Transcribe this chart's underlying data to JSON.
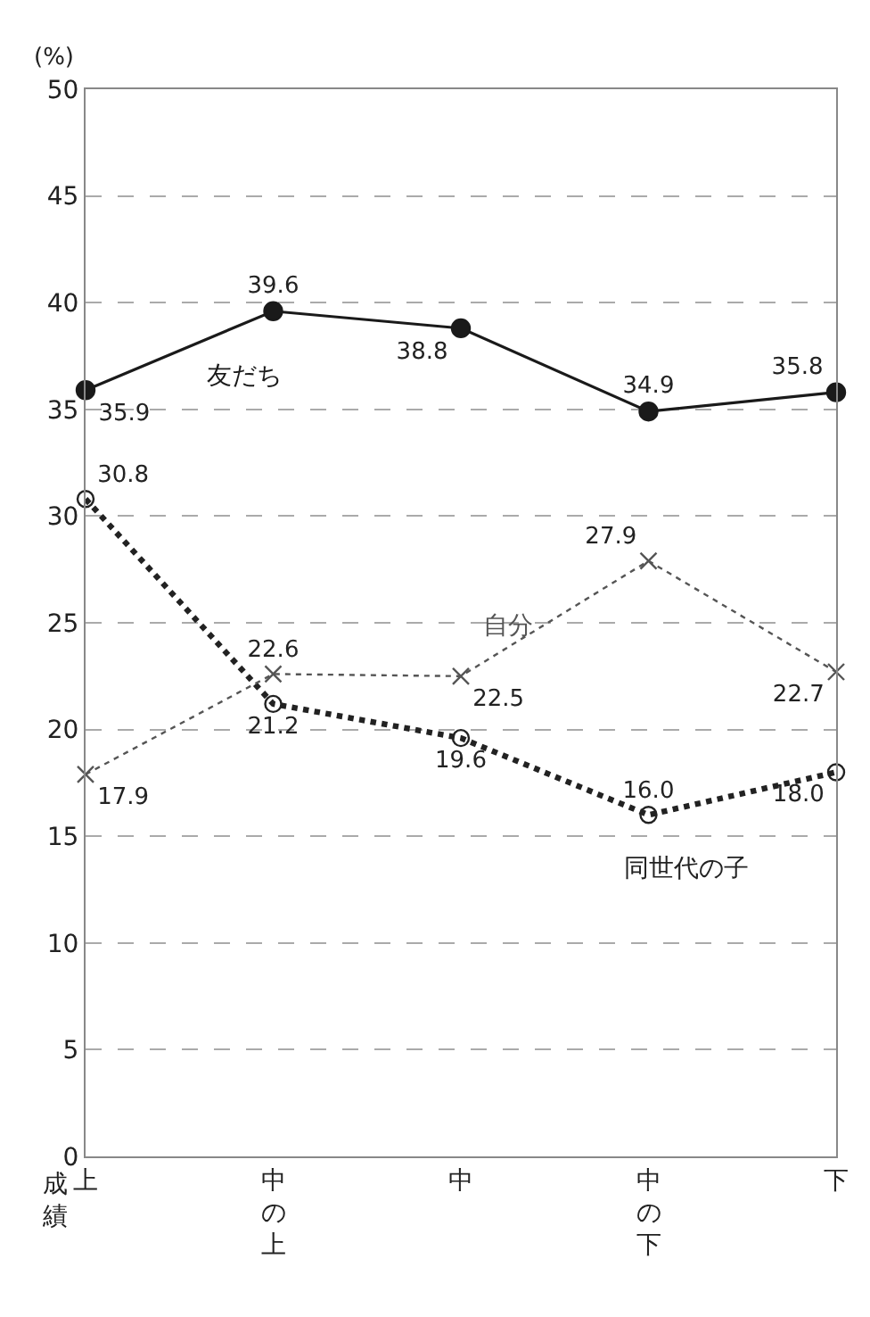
{
  "chart_data": {
    "type": "line",
    "xlabel": "成績",
    "ylabel": "(%)",
    "categories": [
      "上",
      "中の上",
      "中",
      "中の下",
      "下"
    ],
    "ylim": [
      0,
      50
    ],
    "yticks": [
      0,
      5,
      10,
      15,
      20,
      25,
      30,
      35,
      40,
      45,
      50
    ],
    "grid": "y",
    "legend": false,
    "series": [
      {
        "name": "友だち",
        "color": "#1a1a1a",
        "marker": "circle",
        "line_style": "solid",
        "values": [
          35.9,
          39.6,
          38.8,
          34.9,
          35.8
        ],
        "value_labels": [
          "35.9",
          "39.6",
          "38.8",
          "34.9",
          "35.8"
        ]
      },
      {
        "name": "同世代の子",
        "color": "#222222",
        "marker": "circle-open",
        "line_style": "dotted",
        "values": [
          30.8,
          21.2,
          19.6,
          16.0,
          18.0
        ],
        "value_labels": [
          "30.8",
          "21.2",
          "19.6",
          "16.0",
          "18.0"
        ]
      },
      {
        "name": "自分",
        "color": "#555555",
        "marker": "cross",
        "line_style": "dotted",
        "values": [
          17.9,
          22.6,
          22.5,
          27.9,
          22.7
        ],
        "value_labels": [
          "17.9",
          "22.6",
          "22.5",
          "27.9",
          "22.7"
        ]
      }
    ]
  }
}
